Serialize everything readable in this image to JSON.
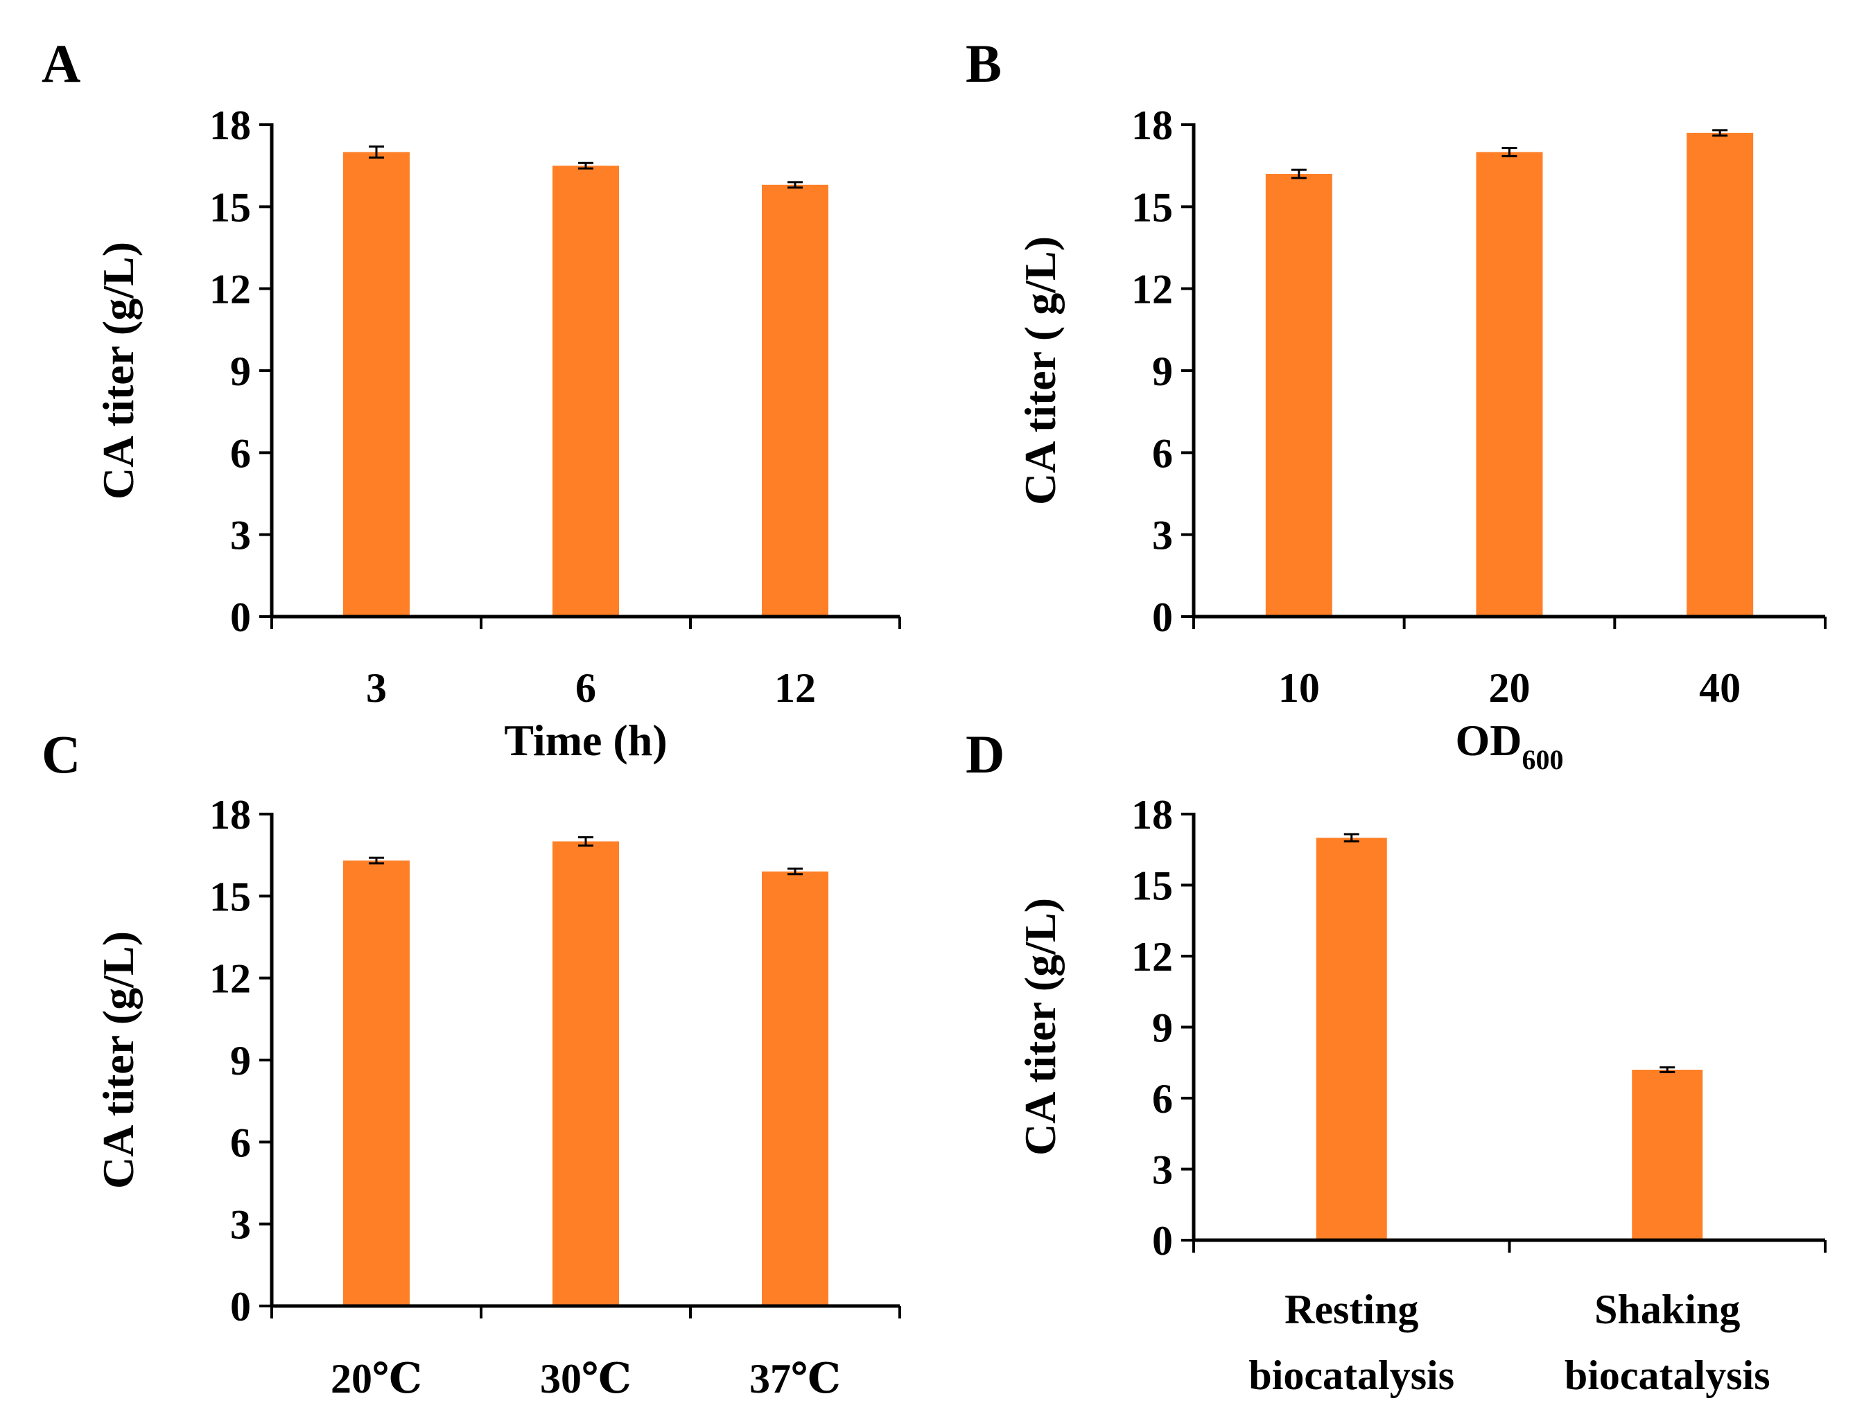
{
  "colors": {
    "bar": "#FF7F27",
    "axis": "#000000",
    "error_bar": "#000000"
  },
  "chart_data": [
    {
      "panel": "A",
      "type": "bar",
      "categories": [
        "3",
        "6",
        "12"
      ],
      "values": [
        17.0,
        16.5,
        15.8
      ],
      "errors": [
        0.2,
        0.1,
        0.1
      ],
      "xlabel": "Time (h)",
      "ylabel": "CA titer (g/L)",
      "ylim": [
        0,
        18
      ],
      "yticks": [
        0,
        3,
        6,
        9,
        12,
        15,
        18
      ],
      "grid": false,
      "legend": "none"
    },
    {
      "panel": "B",
      "type": "bar",
      "categories": [
        "10",
        "20",
        "40"
      ],
      "values": [
        16.2,
        17.0,
        17.7
      ],
      "errors": [
        0.15,
        0.15,
        0.1
      ],
      "xlabel": "OD",
      "xlabel_sub": "600",
      "ylabel": "CA titer ( g/L)",
      "ylim": [
        0,
        18
      ],
      "yticks": [
        0,
        3,
        6,
        9,
        12,
        15,
        18
      ],
      "grid": false,
      "legend": "none"
    },
    {
      "panel": "C",
      "type": "bar",
      "categories": [
        "20℃",
        "30℃",
        "37℃"
      ],
      "values": [
        16.3,
        17.0,
        15.9
      ],
      "errors": [
        0.1,
        0.15,
        0.1
      ],
      "xlabel": "",
      "ylabel": "CA titer (g/L)",
      "ylim": [
        0,
        18
      ],
      "yticks": [
        0,
        3,
        6,
        9,
        12,
        15,
        18
      ],
      "grid": false,
      "legend": "none"
    },
    {
      "panel": "D",
      "type": "bar",
      "categories": [
        [
          "Resting",
          "biocatalysis"
        ],
        [
          "Shaking",
          "biocatalysis"
        ]
      ],
      "values": [
        17.0,
        7.2
      ],
      "errors": [
        0.15,
        0.1
      ],
      "xlabel": "",
      "ylabel": "CA titer (g/L)",
      "ylim": [
        0,
        18
      ],
      "yticks": [
        0,
        3,
        6,
        9,
        12,
        15,
        18
      ],
      "grid": false,
      "legend": "none"
    }
  ]
}
